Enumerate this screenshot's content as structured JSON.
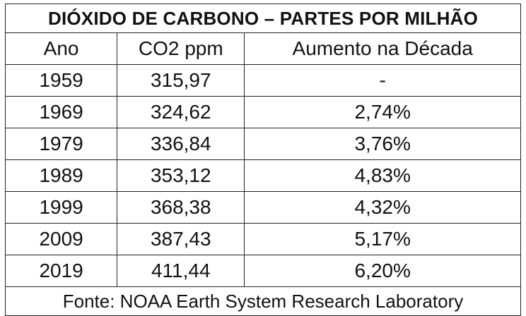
{
  "chart_data": {
    "type": "table",
    "title": "DIÓXIDO DE CARBONO – PARTES POR MILHÃO",
    "columns": [
      "Ano",
      "CO2 ppm",
      "Aumento na Década"
    ],
    "rows": [
      [
        "1959",
        "315,97",
        "-"
      ],
      [
        "1969",
        "324,62",
        "2,74%"
      ],
      [
        "1979",
        "336,84",
        "3,76%"
      ],
      [
        "1989",
        "353,12",
        "4,83%"
      ],
      [
        "1999",
        "368,38",
        "4,32%"
      ],
      [
        "2009",
        "387,43",
        "5,17%"
      ],
      [
        "2019",
        "411,44",
        "6,20%"
      ]
    ],
    "source": "Fonte: NOAA Earth System Research Laboratory"
  }
}
